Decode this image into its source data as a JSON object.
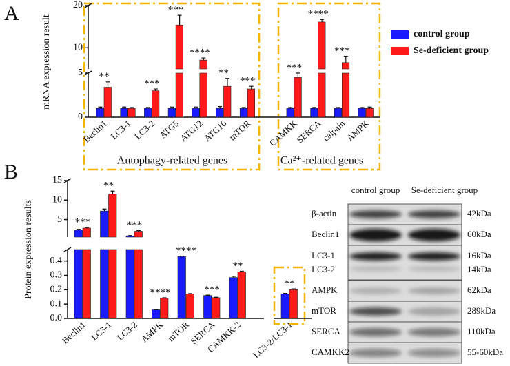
{
  "panels": [
    "A",
    "B"
  ],
  "chart_data": [
    {
      "type": "bar",
      "y_label": "mRNA expression result",
      "ylim": [
        0,
        20
      ],
      "y_segments": [
        {
          "ylim": [
            0,
            5
          ],
          "yticks": [
            0,
            5
          ]
        },
        {
          "ylim": [
            5,
            20
          ],
          "yticks": [
            10,
            20
          ]
        }
      ],
      "categories": [
        "Beclin1",
        "LC3-1",
        "LC3-2",
        "ATG5",
        "ATG12",
        "ATG16",
        "mTOR",
        "CAMKK",
        "SERCA",
        "calpain",
        "AMPK"
      ],
      "groups": [
        "Autophagy-related genes",
        "Ca²⁺-related genes"
      ],
      "series": [
        {
          "name": "control group",
          "color": "#1a1aff",
          "values": [
            1,
            1,
            1,
            1,
            1,
            1,
            1,
            1,
            1,
            1,
            1
          ],
          "errors": [
            0.15,
            0.15,
            0.1,
            0.15,
            0.15,
            0.2,
            0.1,
            0.1,
            0.1,
            0.1,
            0.1
          ]
        },
        {
          "name": "Se-deficient group",
          "color": "#ff1a1a",
          "values": [
            3.4,
            1.0,
            3.0,
            15.4,
            7.1,
            3.5,
            3.2,
            4.5,
            16.1,
            6.5,
            1.0
          ],
          "errors": [
            0.6,
            0.1,
            0.2,
            2.3,
            0.5,
            0.9,
            0.3,
            0.5,
            0.6,
            1.5,
            0.15
          ]
        }
      ],
      "significance": [
        "**",
        null,
        "***",
        "***",
        "****",
        "**",
        "***",
        "***",
        "****",
        "***",
        null
      ],
      "legend": "right"
    },
    {
      "type": "bar",
      "y_label": "Protein expression results",
      "ylim": [
        0,
        15
      ],
      "y_segments": [
        {
          "ylim": [
            0,
            0.48
          ],
          "yticks": [
            {
              "value": 0,
              "label": "0.0"
            },
            0.1,
            0.2,
            0.3,
            0.4
          ]
        },
        {
          "ylim": [
            0.5,
            15
          ],
          "yticks": [
            5,
            10,
            15
          ]
        }
      ],
      "categories": [
        "Beclin1",
        "LC3-1",
        "LC3-2",
        "AMPK",
        "mTOR",
        "SERCA",
        "CAMKK-2",
        null,
        "LC3-2/LC3-1"
      ],
      "series": [
        {
          "name": "control group",
          "color": "#1a1aff",
          "values": [
            2.3,
            7.2,
            0.8,
            0.06,
            0.43,
            0.16,
            0.285,
            null,
            0.17
          ],
          "errors": [
            0.2,
            0.5,
            0.1,
            0.003,
            0.003,
            0.003,
            0.008,
            null,
            0.005
          ]
        },
        {
          "name": "Se-deficient group",
          "color": "#ff1a1a",
          "values": [
            2.8,
            11.5,
            2.0,
            0.14,
            0.17,
            0.145,
            0.325,
            null,
            0.2
          ],
          "errors": [
            0.2,
            0.8,
            0.2,
            0.004,
            0.003,
            0.003,
            0.004,
            null,
            0.006
          ]
        }
      ],
      "significance": [
        "***",
        "**",
        "***",
        "****",
        "****",
        "***",
        "**",
        null,
        "**"
      ]
    }
  ],
  "blot": {
    "columns": [
      "control group",
      "Se-deficient group"
    ],
    "rows": [
      {
        "protein": [
          "β-actin"
        ],
        "size": [
          "42kDa"
        ]
      },
      {
        "protein": [
          "Beclin1"
        ],
        "size": [
          "60kDa"
        ]
      },
      {
        "protein": [
          "LC3-1",
          "LC3-2"
        ],
        "size": [
          "16kDa",
          "14kDa"
        ]
      },
      {
        "protein": [
          "AMPK"
        ],
        "size": [
          "62kDa"
        ]
      },
      {
        "protein": [
          "mTOR"
        ],
        "size": [
          "289kDa"
        ]
      },
      {
        "protein": [
          "SERCA"
        ],
        "size": [
          "110kDa"
        ]
      },
      {
        "protein": [
          "CAMKK2"
        ],
        "size": [
          "55-60kDa"
        ]
      }
    ]
  }
}
